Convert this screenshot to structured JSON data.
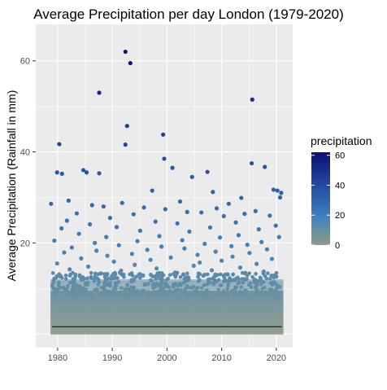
{
  "chart_data": {
    "type": "scatter",
    "title": "Average Precipitation per day London (1979-2020)",
    "xlabel": "",
    "ylabel": "Average Precipitation (Rainfall in mm)",
    "xlim": [
      1976,
      2023
    ],
    "ylim": [
      -3,
      68
    ],
    "x_ticks": [
      1980,
      1990,
      2000,
      2010,
      2020
    ],
    "y_ticks": [
      20,
      40,
      60
    ],
    "grid": true,
    "panel_background": "#ebebeb",
    "reference_line": {
      "y": 1.6,
      "x_range": [
        1979,
        2021
      ],
      "color": "#000000"
    },
    "color_scale": {
      "variable": "precipitation",
      "low_color": "#8f9c8a",
      "mid_color": "#3a7fbd",
      "high_color": "#0c0f78",
      "range": [
        0,
        62
      ],
      "breaks": [
        0,
        20,
        40,
        60
      ]
    },
    "legend": {
      "title": "precipitation",
      "position": "right"
    },
    "density_note": "dense band of daily values between 0 and about 12 mm across all years",
    "series": [
      {
        "points": [
          [
            1992.4,
            62.0
          ],
          [
            1993.3,
            59.5
          ],
          [
            1987.6,
            53.0
          ],
          [
            2015.6,
            51.5
          ],
          [
            1992.7,
            45.7
          ],
          [
            1999.3,
            43.8
          ],
          [
            1980.3,
            41.7
          ],
          [
            1992.4,
            41.6
          ],
          [
            1999.5,
            38.5
          ],
          [
            2015.5,
            37.5
          ],
          [
            2001.0,
            36.5
          ],
          [
            2017.9,
            36.7
          ],
          [
            1984.7,
            36.0
          ],
          [
            1985.3,
            35.5
          ],
          [
            1979.9,
            35.5
          ],
          [
            1987.6,
            35.3
          ],
          [
            1980.8,
            35.2
          ],
          [
            2007.4,
            35.6
          ],
          [
            2004.6,
            34.5
          ],
          [
            2019.5,
            31.7
          ],
          [
            2020.2,
            31.5
          ],
          [
            2020.9,
            31.0
          ],
          [
            2020.7,
            30.0
          ],
          [
            1997.3,
            31.5
          ],
          [
            2013.6,
            29.9
          ],
          [
            2002.4,
            29.1
          ],
          [
            2008.4,
            31.2
          ],
          [
            1982.0,
            29.3
          ],
          [
            1978.8,
            28.6
          ],
          [
            1991.8,
            28.8
          ],
          [
            2011.3,
            28.6
          ],
          [
            1986.3,
            28.3
          ],
          [
            1988.4,
            28.0
          ],
          [
            1995.8,
            27.8
          ],
          [
            2009.1,
            27.6
          ],
          [
            2016.2,
            27.0
          ],
          [
            2003.7,
            26.8
          ],
          [
            1999.7,
            27.4
          ],
          [
            1983.5,
            26.5
          ],
          [
            1993.9,
            26.3
          ],
          [
            2006.3,
            26.7
          ],
          [
            2014.2,
            26.4
          ],
          [
            2018.8,
            26.0
          ],
          [
            1989.6,
            25.5
          ],
          [
            2010.4,
            25.9
          ],
          [
            1981.7,
            24.9
          ],
          [
            1997.9,
            24.7
          ],
          [
            2012.6,
            24.5
          ],
          [
            2001.9,
            24.3
          ],
          [
            1985.9,
            24.1
          ],
          [
            2019.9,
            23.8
          ],
          [
            1990.8,
            23.5
          ],
          [
            2007.9,
            23.4
          ],
          [
            1980.7,
            23.2
          ],
          [
            2016.8,
            23.0
          ],
          [
            1995.1,
            22.7
          ],
          [
            2004.1,
            22.5
          ],
          [
            2020.5,
            21.3
          ],
          [
            1983.9,
            22.0
          ],
          [
            2013.1,
            21.7
          ],
          [
            1998.6,
            21.5
          ],
          [
            1988.9,
            21.3
          ],
          [
            2009.7,
            21.2
          ],
          [
            1979.4,
            20.5
          ],
          [
            2002.8,
            20.6
          ],
          [
            1994.6,
            20.4
          ],
          [
            2017.3,
            20.2
          ],
          [
            1986.8,
            20.0
          ],
          [
            2006.9,
            19.8
          ],
          [
            2014.7,
            19.6
          ],
          [
            1991.2,
            19.5
          ],
          [
            2011.8,
            19.3
          ],
          [
            1999.0,
            19.2
          ],
          [
            1982.6,
            19.0
          ],
          [
            2003.2,
            18.8
          ],
          [
            2018.3,
            18.6
          ],
          [
            1996.4,
            18.5
          ],
          [
            1987.1,
            18.3
          ],
          [
            2008.9,
            18.1
          ],
          [
            1981.2,
            17.9
          ],
          [
            2015.1,
            17.8
          ],
          [
            1993.6,
            17.6
          ],
          [
            2005.6,
            17.4
          ],
          [
            1989.1,
            17.2
          ],
          [
            2012.0,
            17.0
          ],
          [
            2000.7,
            16.8
          ],
          [
            1984.3,
            16.6
          ],
          [
            2019.2,
            16.5
          ],
          [
            1997.0,
            16.3
          ],
          [
            2010.0,
            16.1
          ],
          [
            1990.3,
            15.9
          ],
          [
            2006.0,
            15.7
          ],
          [
            1979.9,
            15.5
          ],
          [
            2016.4,
            15.4
          ],
          [
            1994.1,
            15.2
          ],
          [
            2004.9,
            15.0
          ],
          [
            1985.6,
            14.8
          ],
          [
            2013.4,
            14.6
          ],
          [
            1998.1,
            14.4
          ],
          [
            1982.2,
            14.2
          ],
          [
            2008.2,
            14.0
          ],
          [
            1991.6,
            13.9
          ],
          [
            2017.7,
            13.7
          ],
          [
            2001.5,
            13.5
          ],
          [
            1987.9,
            13.3
          ],
          [
            2011.1,
            13.1
          ],
          [
            1995.6,
            12.9
          ],
          [
            1980.5,
            12.8
          ],
          [
            2020.0,
            12.6
          ],
          [
            2003.9,
            12.4
          ],
          [
            1989.9,
            12.2
          ],
          [
            2014.4,
            12.0
          ]
        ]
      }
    ]
  }
}
